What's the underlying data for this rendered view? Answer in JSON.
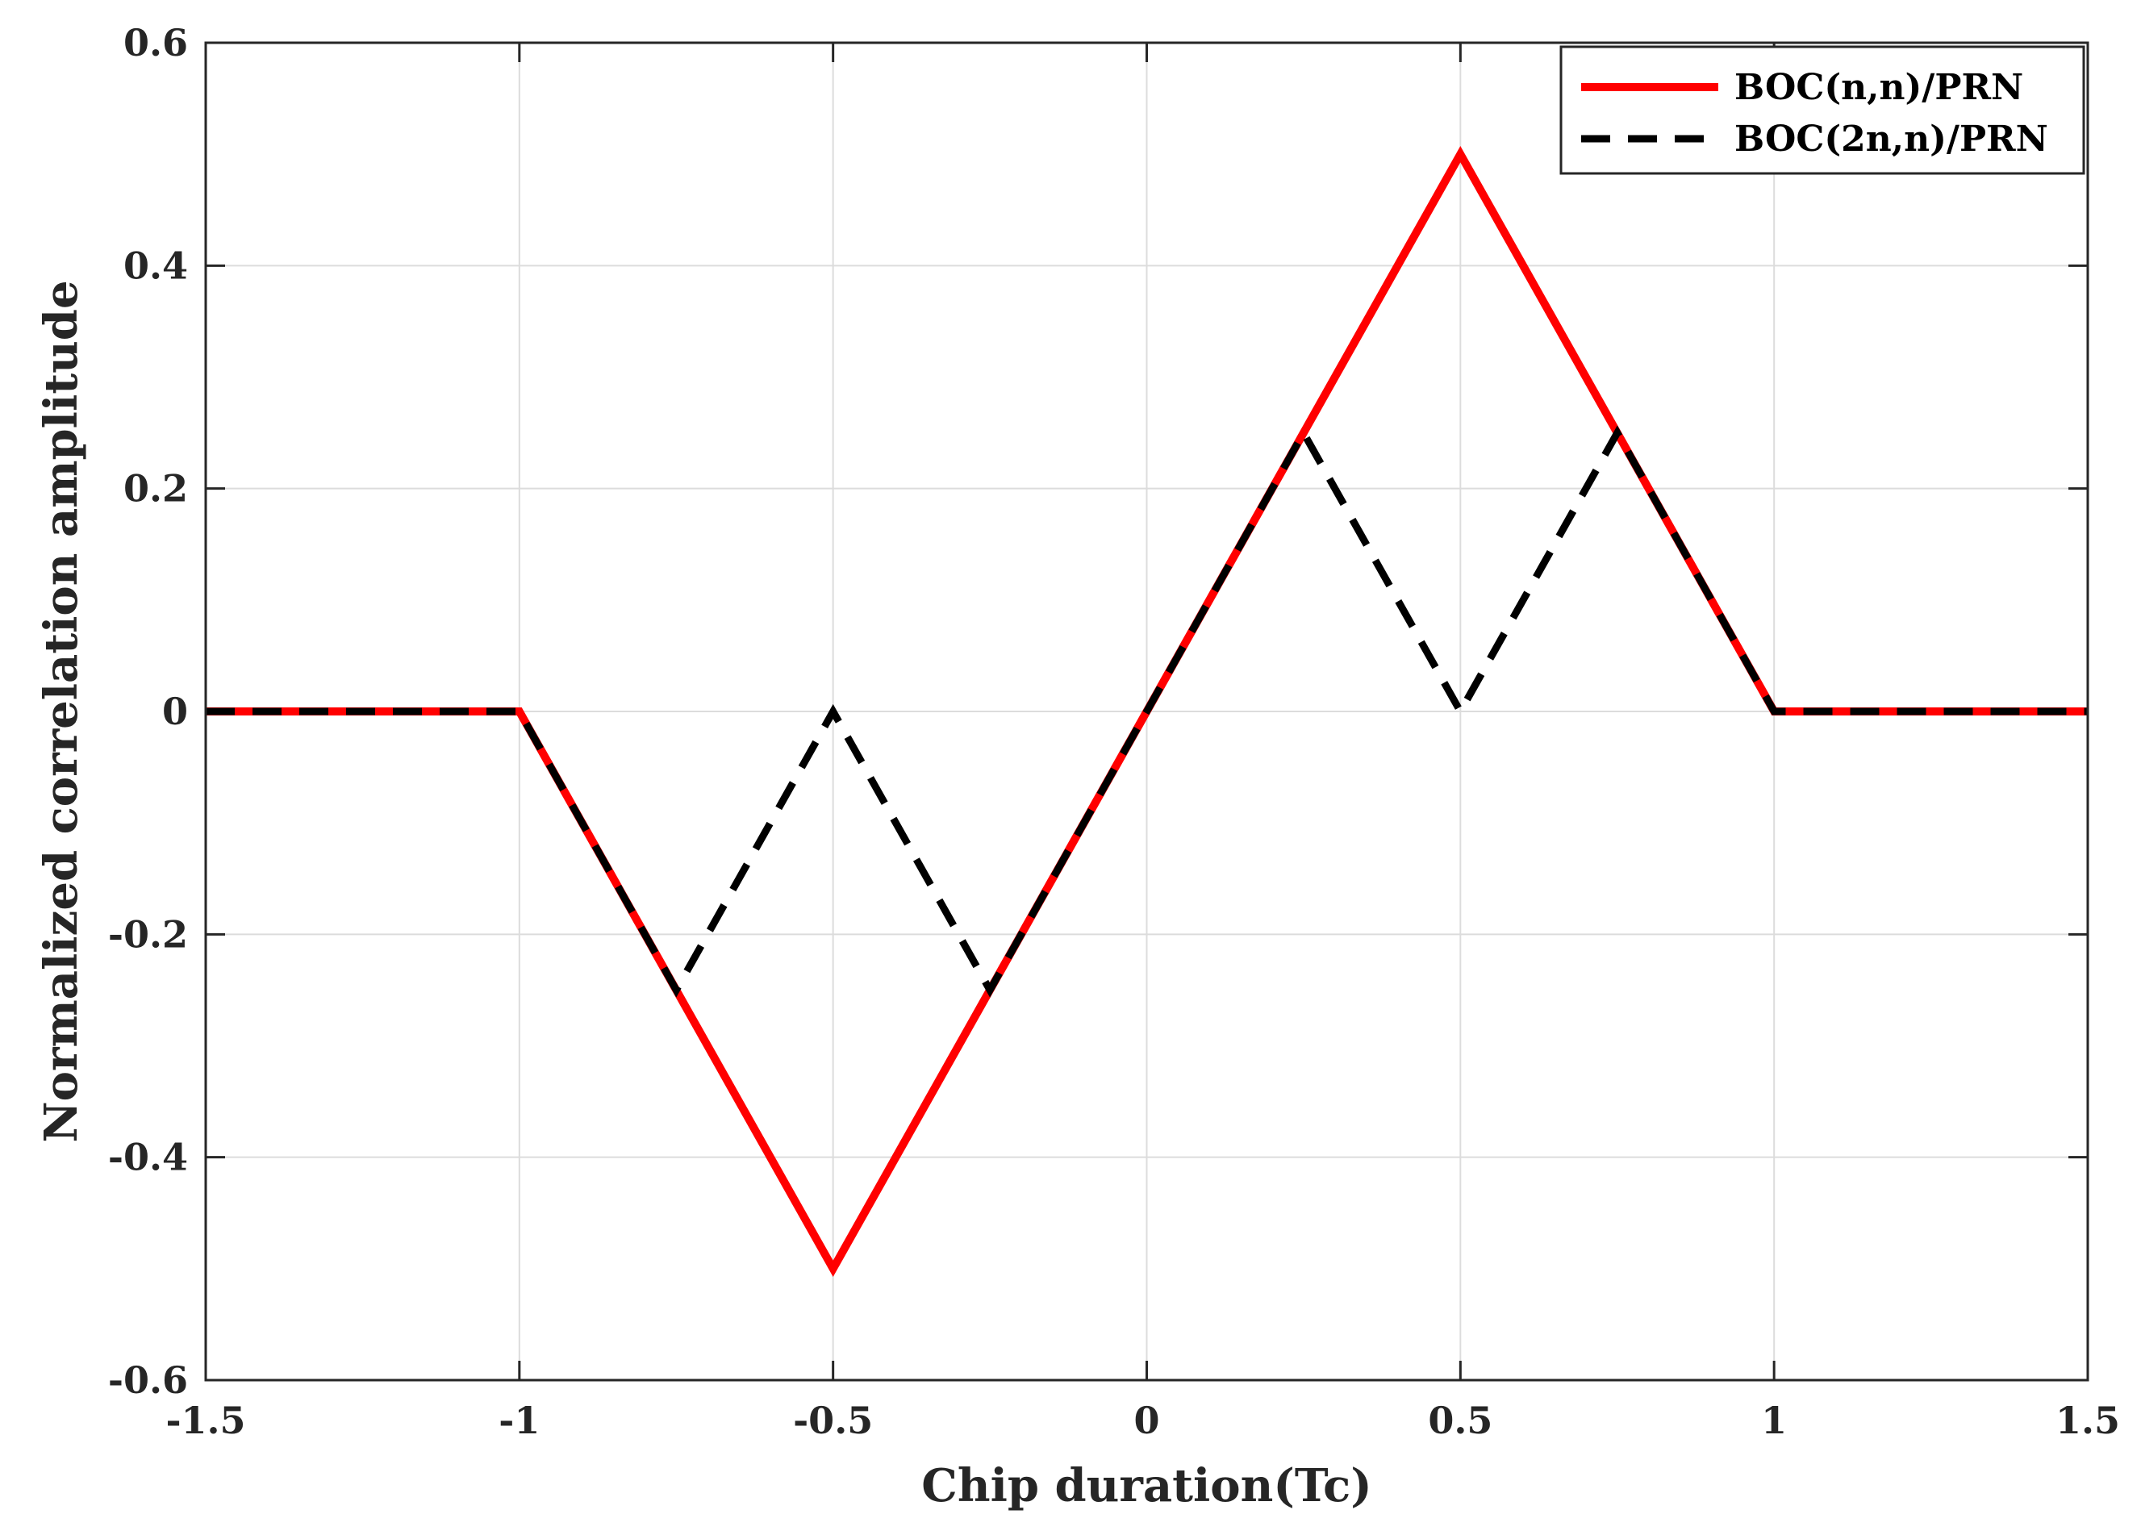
{
  "chart_data": {
    "type": "line",
    "title": "",
    "xlabel": "Chip duration(Tc)",
    "ylabel": "Normalized correlation amplitude",
    "xlim": [
      -1.5,
      1.5
    ],
    "ylim": [
      -0.6,
      0.6
    ],
    "xticks": [
      -1.5,
      -1,
      -0.5,
      0,
      0.5,
      1,
      1.5
    ],
    "xtick_labels": [
      "-1.5",
      "-1",
      "-0.5",
      "0",
      "0.5",
      "1",
      "1.5"
    ],
    "yticks": [
      -0.6,
      -0.4,
      -0.2,
      0,
      0.2,
      0.4,
      0.6
    ],
    "ytick_labels": [
      "-0.6",
      "-0.4",
      "-0.2",
      "0",
      "0.2",
      "0.4",
      "0.6"
    ],
    "grid": true,
    "legend_position": "top-right",
    "series": [
      {
        "name": "BOC(n,n)/PRN",
        "color": "#ff0000",
        "style": "solid",
        "x": [
          -1.5,
          -1,
          -0.5,
          0,
          0.5,
          1,
          1.5
        ],
        "y": [
          0,
          0,
          -0.5,
          0,
          0.5,
          0,
          0
        ]
      },
      {
        "name": "BOC(2n,n)/PRN",
        "color": "#000000",
        "style": "dashed",
        "x": [
          -1.5,
          -1,
          -0.75,
          -0.5,
          -0.25,
          0,
          0.25,
          0.5,
          0.75,
          1,
          1.5
        ],
        "y": [
          0,
          0,
          -0.25,
          0,
          -0.25,
          0,
          0.25,
          0,
          0.25,
          0,
          0
        ]
      }
    ]
  }
}
